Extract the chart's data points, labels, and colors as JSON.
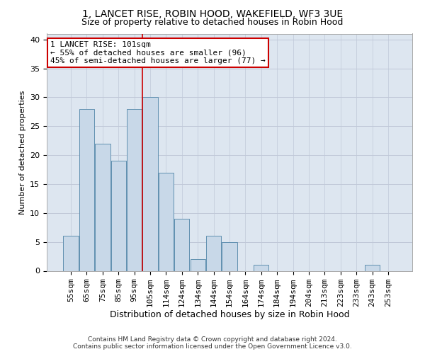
{
  "title": "1, LANCET RISE, ROBIN HOOD, WAKEFIELD, WF3 3UE",
  "subtitle": "Size of property relative to detached houses in Robin Hood",
  "xlabel": "Distribution of detached houses by size in Robin Hood",
  "ylabel": "Number of detached properties",
  "categories": [
    "55sqm",
    "65sqm",
    "75sqm",
    "85sqm",
    "95sqm",
    "105sqm",
    "114sqm",
    "124sqm",
    "134sqm",
    "144sqm",
    "154sqm",
    "164sqm",
    "174sqm",
    "184sqm",
    "194sqm",
    "204sqm",
    "213sqm",
    "223sqm",
    "233sqm",
    "243sqm",
    "253sqm"
  ],
  "values": [
    6,
    28,
    22,
    19,
    28,
    30,
    17,
    9,
    2,
    6,
    5,
    0,
    1,
    0,
    0,
    0,
    0,
    0,
    0,
    1,
    0
  ],
  "bar_color": "#c8d8e8",
  "bar_edge_color": "#6090b0",
  "vline_color": "#cc0000",
  "vline_x_index": 4.5,
  "annotation_line1": "1 LANCET RISE: 101sqm",
  "annotation_line2": "← 55% of detached houses are smaller (96)",
  "annotation_line3": "45% of semi-detached houses are larger (77) →",
  "annotation_box_color": "#ffffff",
  "annotation_box_edge_color": "#cc0000",
  "ylim": [
    0,
    41
  ],
  "yticks": [
    0,
    5,
    10,
    15,
    20,
    25,
    30,
    35,
    40
  ],
  "grid_color": "#c0c8d8",
  "background_color": "#dde6f0",
  "footer_line1": "Contains HM Land Registry data © Crown copyright and database right 2024.",
  "footer_line2": "Contains public sector information licensed under the Open Government Licence v3.0.",
  "title_fontsize": 10,
  "subtitle_fontsize": 9,
  "xlabel_fontsize": 9,
  "ylabel_fontsize": 8,
  "tick_fontsize": 8,
  "annotation_fontsize": 8,
  "footer_fontsize": 6.5
}
